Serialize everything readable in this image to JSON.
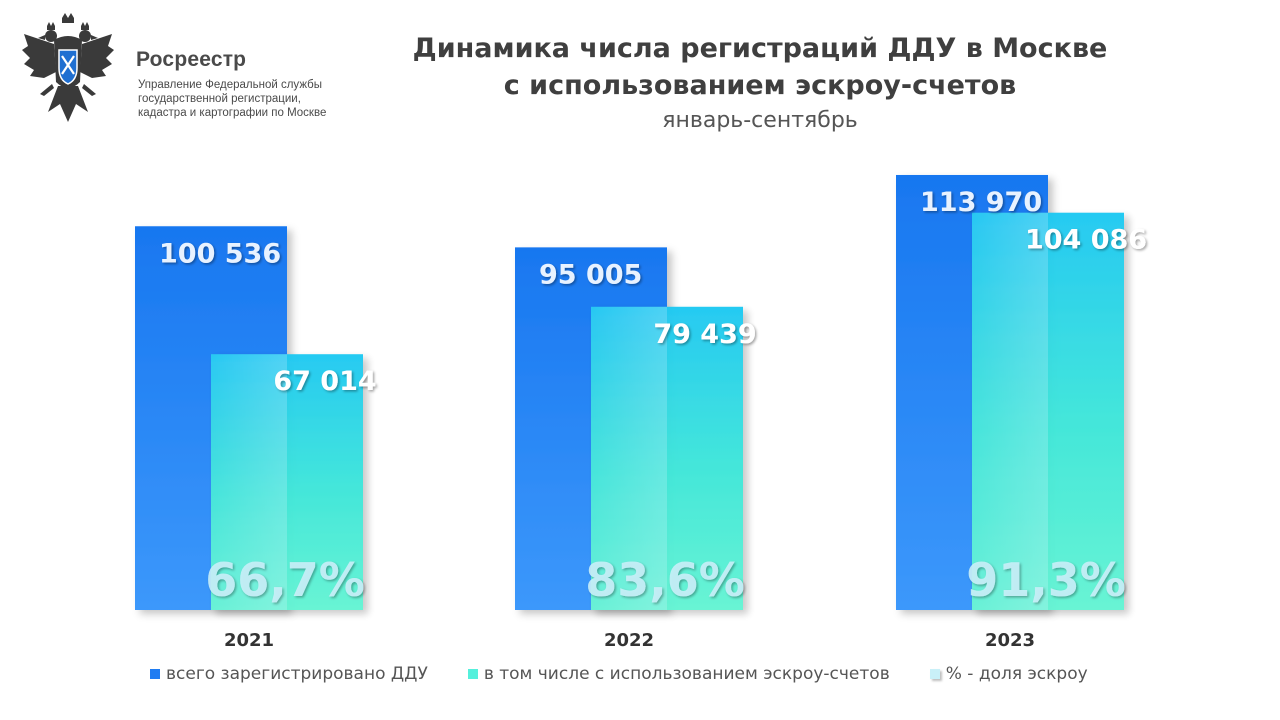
{
  "header": {
    "org_name": "Росреестр",
    "org_desc": [
      "Управление Федеральной службы",
      "государственной регистрации,",
      "кадастра и картографии по Москве"
    ],
    "logo_icon": "double-headed-eagle-emblem"
  },
  "chart_data": {
    "type": "bar",
    "title_lines": [
      "Динамика числа регистраций ДДУ в Москве",
      "с использованием эскроу-счетов"
    ],
    "subtitle": "январь-сентябрь",
    "categories": [
      "2021",
      "2022",
      "2023"
    ],
    "series": [
      {
        "name": "всего зарегистрировано ДДУ",
        "values": [
          100536,
          95005,
          113970
        ],
        "labels": [
          "100 536",
          "95 005",
          "113 970"
        ],
        "color": "#1f7cf2"
      },
      {
        "name": "в том числе с использованием эскроу-счетов",
        "values": [
          67014,
          79439,
          104086
        ],
        "labels": [
          "67 014",
          "79 439",
          "104 086"
        ],
        "color": "#35e6d6"
      }
    ],
    "share": {
      "name": "% - доля эскроу",
      "values": [
        66.7,
        83.6,
        91.3
      ],
      "labels": [
        "66,7%",
        "83,6%",
        "91,3%"
      ],
      "color": "#c9f0f8"
    },
    "ylim": [
      0,
      120000
    ],
    "grid": false,
    "legend_position": "bottom"
  }
}
